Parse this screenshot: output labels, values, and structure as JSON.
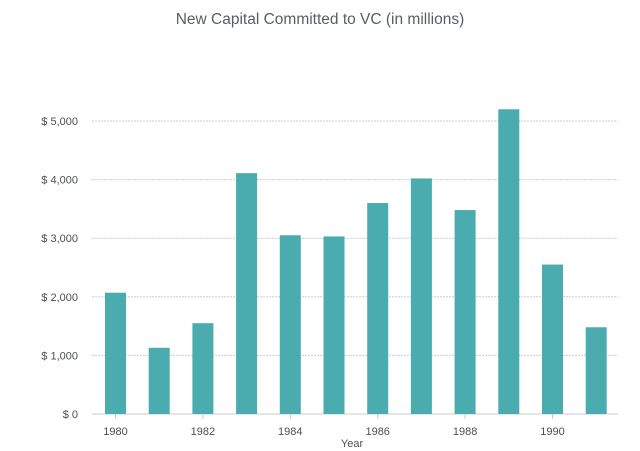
{
  "chart_data": {
    "type": "bar",
    "title": "New Capital Committed to VC (in millions)",
    "xlabel": "Year",
    "ylabel": "",
    "categories": [
      "1980",
      "1981",
      "1982",
      "1983",
      "1984",
      "1985",
      "1986",
      "1987",
      "1988",
      "1989",
      "1990",
      "1991"
    ],
    "values": [
      2070,
      1130,
      1550,
      4110,
      3050,
      3030,
      3600,
      4020,
      3480,
      5200,
      2550,
      1480
    ],
    "ylim": [
      0,
      5000
    ],
    "y_ticks": [
      0,
      1000,
      2000,
      3000,
      4000,
      5000
    ],
    "y_tick_labels": [
      "$ 0",
      "$ 1,000",
      "$ 2,000",
      "$ 3,000",
      "$ 4,000",
      "$ 5,000"
    ],
    "x_tick_labels": [
      "1980",
      "1982",
      "1984",
      "1986",
      "1988",
      "1990"
    ],
    "grid": true,
    "bar_color": "#4aacaf",
    "grid_color": "#c9cdd1"
  }
}
